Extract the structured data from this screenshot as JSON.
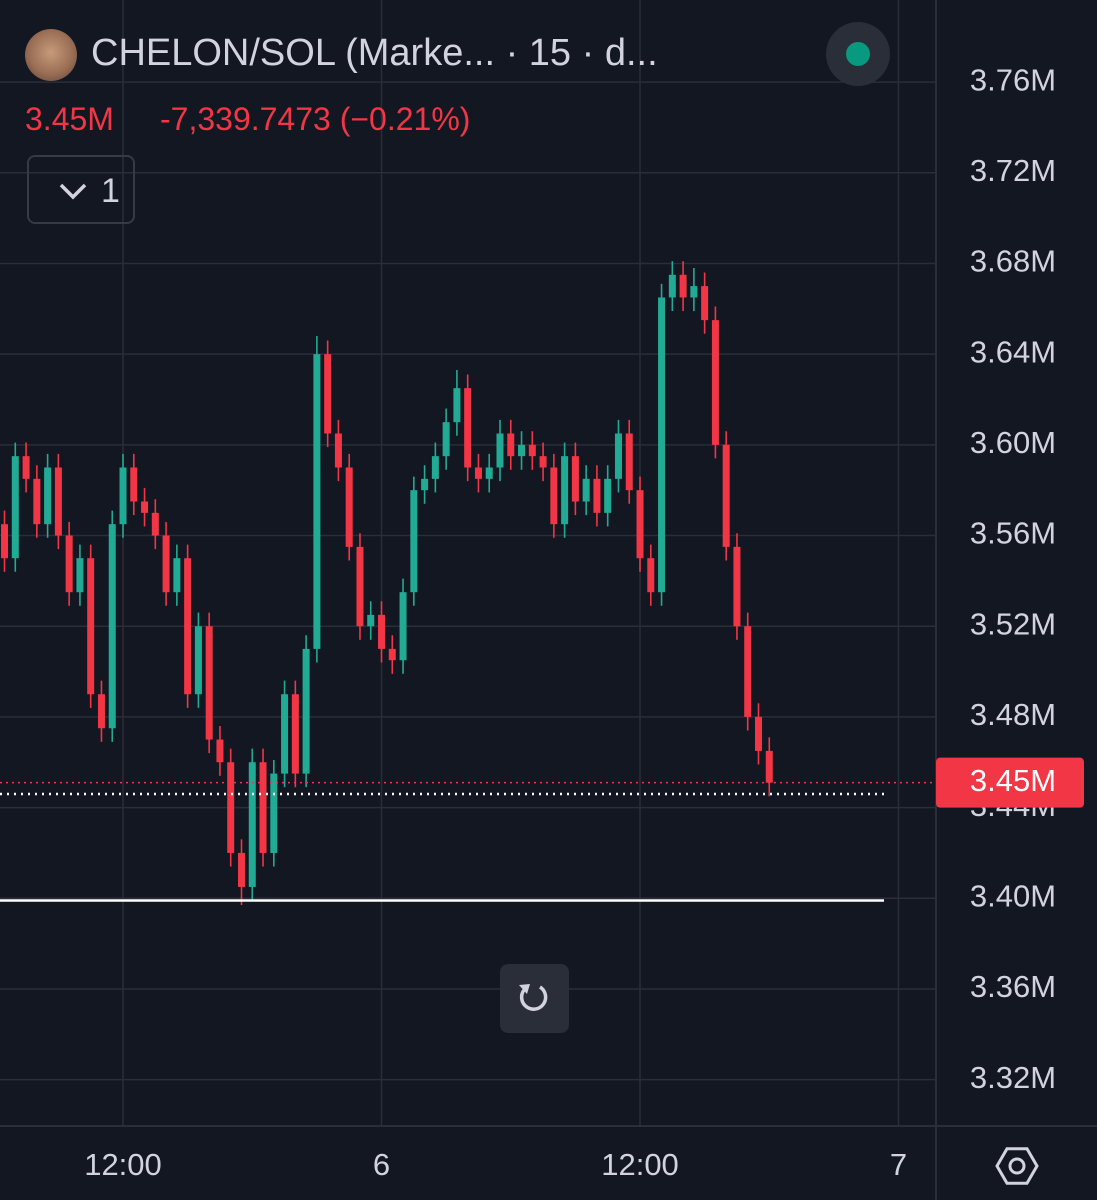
{
  "header": {
    "symbol": "CHELON/SOL (Marke... · 15 · d...",
    "price": "3.45M",
    "change": "-7,339.7473 (−0.21%)",
    "indicator_count": "1"
  },
  "chart_data": {
    "type": "candlestick",
    "x": [
      6.5,
      7,
      7.5,
      8,
      8.5,
      9,
      9.5,
      10,
      10.5,
      11,
      11.5,
      12,
      12.5,
      13,
      13.5,
      14,
      14.5,
      15,
      15.5,
      16,
      16.5,
      17,
      17.5,
      18,
      18.5,
      19,
      19.5,
      20,
      20.5,
      21,
      21.5,
      22,
      22.5,
      23,
      23.5,
      24,
      24.5,
      25,
      25.5,
      26,
      26.5,
      27,
      27.5,
      28,
      28.5,
      29,
      29.5,
      30,
      30.5,
      31,
      31.5,
      32,
      32.5,
      33,
      33.5,
      34,
      34.5,
      35,
      35.5,
      36,
      36.5,
      37,
      37.5,
      38,
      38.5,
      39,
      39.5,
      40,
      40.5,
      41,
      41.5,
      42
    ],
    "open": [
      3.565,
      3.55,
      3.595,
      3.585,
      3.565,
      3.59,
      3.56,
      3.535,
      3.55,
      3.49,
      3.475,
      3.565,
      3.59,
      3.575,
      3.57,
      3.56,
      3.535,
      3.55,
      3.49,
      3.52,
      3.47,
      3.46,
      3.42,
      3.405,
      3.46,
      3.42,
      3.455,
      3.49,
      3.455,
      3.51,
      3.64,
      3.605,
      3.59,
      3.555,
      3.52,
      3.525,
      3.51,
      3.505,
      3.535,
      3.58,
      3.585,
      3.595,
      3.61,
      3.625,
      3.59,
      3.585,
      3.59,
      3.605,
      3.595,
      3.6,
      3.595,
      3.59,
      3.565,
      3.595,
      3.575,
      3.585,
      3.57,
      3.585,
      3.605,
      3.58,
      3.55,
      3.535,
      3.665,
      3.675,
      3.665,
      3.67,
      3.655,
      3.6,
      3.555,
      3.52,
      3.48,
      3.465
    ],
    "high": [
      3.571,
      3.601,
      3.601,
      3.591,
      3.596,
      3.596,
      3.566,
      3.556,
      3.556,
      3.496,
      3.571,
      3.596,
      3.596,
      3.581,
      3.576,
      3.566,
      3.556,
      3.556,
      3.526,
      3.526,
      3.476,
      3.466,
      3.426,
      3.466,
      3.466,
      3.461,
      3.496,
      3.496,
      3.516,
      3.648,
      3.646,
      3.611,
      3.596,
      3.561,
      3.531,
      3.531,
      3.516,
      3.541,
      3.586,
      3.591,
      3.601,
      3.616,
      3.633,
      3.631,
      3.596,
      3.596,
      3.611,
      3.611,
      3.606,
      3.606,
      3.601,
      3.596,
      3.601,
      3.601,
      3.591,
      3.591,
      3.591,
      3.611,
      3.611,
      3.586,
      3.556,
      3.671,
      3.681,
      3.681,
      3.678,
      3.676,
      3.661,
      3.606,
      3.561,
      3.526,
      3.486,
      3.471
    ],
    "low": [
      3.544,
      3.544,
      3.579,
      3.559,
      3.559,
      3.554,
      3.529,
      3.529,
      3.484,
      3.469,
      3.469,
      3.559,
      3.569,
      3.564,
      3.554,
      3.529,
      3.529,
      3.484,
      3.484,
      3.464,
      3.454,
      3.414,
      3.397,
      3.399,
      3.414,
      3.414,
      3.449,
      3.449,
      3.449,
      3.504,
      3.599,
      3.584,
      3.549,
      3.514,
      3.514,
      3.504,
      3.499,
      3.499,
      3.529,
      3.574,
      3.579,
      3.589,
      3.604,
      3.584,
      3.579,
      3.579,
      3.584,
      3.589,
      3.589,
      3.589,
      3.584,
      3.559,
      3.559,
      3.569,
      3.569,
      3.564,
      3.564,
      3.579,
      3.574,
      3.544,
      3.529,
      3.529,
      3.659,
      3.659,
      3.659,
      3.649,
      3.594,
      3.549,
      3.514,
      3.474,
      3.459,
      3.445
    ],
    "close": [
      3.55,
      3.595,
      3.585,
      3.565,
      3.59,
      3.56,
      3.535,
      3.55,
      3.49,
      3.475,
      3.565,
      3.59,
      3.575,
      3.57,
      3.56,
      3.535,
      3.55,
      3.49,
      3.52,
      3.47,
      3.46,
      3.42,
      3.405,
      3.46,
      3.42,
      3.455,
      3.49,
      3.455,
      3.51,
      3.64,
      3.605,
      3.59,
      3.555,
      3.52,
      3.525,
      3.51,
      3.505,
      3.535,
      3.58,
      3.585,
      3.595,
      3.61,
      3.625,
      3.59,
      3.585,
      3.59,
      3.605,
      3.595,
      3.6,
      3.595,
      3.59,
      3.565,
      3.595,
      3.575,
      3.585,
      3.57,
      3.585,
      3.605,
      3.58,
      3.55,
      3.535,
      3.665,
      3.675,
      3.665,
      3.67,
      3.655,
      3.6,
      3.555,
      3.52,
      3.48,
      3.465,
      3.451
    ],
    "up_color": "#22ab94",
    "down_color": "#f23645",
    "xlim": [
      6.29,
      49.74
    ],
    "xticks": [
      {
        "value": 12,
        "label": "12:00"
      },
      {
        "value": 24,
        "label": "6"
      },
      {
        "value": 36,
        "label": "12:00"
      },
      {
        "value": 48,
        "label": "7"
      }
    ],
    "ylim": [
      3.3,
      3.7962
    ],
    "yticks": [
      {
        "value": 3.32,
        "label": "3.32M"
      },
      {
        "value": 3.36,
        "label": "3.36M"
      },
      {
        "value": 3.4,
        "label": "3.40M"
      },
      {
        "value": 3.44,
        "label": "3.44M"
      },
      {
        "value": 3.48,
        "label": "3.48M"
      },
      {
        "value": 3.52,
        "label": "3.52M"
      },
      {
        "value": 3.56,
        "label": "3.56M"
      },
      {
        "value": 3.6,
        "label": "3.60M"
      },
      {
        "value": 3.64,
        "label": "3.64M"
      },
      {
        "value": 3.68,
        "label": "3.68M"
      },
      {
        "value": 3.72,
        "label": "3.72M"
      },
      {
        "value": 3.76,
        "label": "3.76M"
      }
    ],
    "grid": true,
    "horizontal_lines": [
      {
        "value": 3.446,
        "style": "dotted"
      },
      {
        "value": 3.399,
        "style": "solid"
      }
    ],
    "last_price": {
      "value": 3.451,
      "label": "3.45M"
    }
  }
}
